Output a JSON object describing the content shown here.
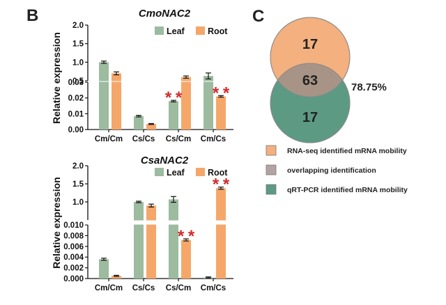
{
  "panel_b_label": "B",
  "panel_c_label": "C",
  "colors": {
    "leaf": "#9cbb9f",
    "root": "#f5a76a",
    "star": "#d42a2a",
    "venn_top": "#f4b07e",
    "venn_bottom": "#5c9a84",
    "venn_overlap": "#a89486",
    "legend_overlap": "#b3a3a6"
  },
  "chart_data": [
    {
      "type": "bar",
      "title": "CmoNAC2",
      "ylabel": "Relative expression",
      "categories": [
        "Cm/Cm",
        "Cs/Cs",
        "Cs/Cm",
        "Cm/Cs"
      ],
      "broken_axis": true,
      "upper_ylim": [
        0.5,
        2.0
      ],
      "upper_ticks": [
        "2.0",
        "1.5",
        "1.0",
        "0.5"
      ],
      "lower_ylim": [
        0,
        0.03
      ],
      "lower_ticks": [
        "0.03",
        "0.02",
        "0.01",
        "0.00"
      ],
      "legend": [
        "Leaf",
        "Root"
      ],
      "legend_position": "top-right",
      "series": [
        {
          "name": "Leaf",
          "values": [
            1.0,
            0.0085,
            0.018,
            0.63
          ],
          "errors": [
            0.03,
            0.0005,
            0.0005,
            0.08
          ]
        },
        {
          "name": "Root",
          "values": [
            0.7,
            0.0035,
            0.6,
            0.021
          ],
          "errors": [
            0.04,
            0.0003,
            0.03,
            0.0005
          ]
        }
      ],
      "significance": [
        {
          "category": "Cs/Cm",
          "series": "Leaf",
          "label": "*"
        },
        {
          "category": "Cs/Cm",
          "series": "Leaf",
          "label": "*"
        },
        {
          "category": "Cm/Cs",
          "series": "Root",
          "label": "*"
        },
        {
          "category": "Cm/Cs",
          "series": "Root",
          "label": "*"
        }
      ]
    },
    {
      "type": "bar",
      "title": "CsaNAC2",
      "ylabel": "Relative expression",
      "categories": [
        "Cm/Cm",
        "Cs/Cs",
        "Cs/Cm",
        "Cm/Cs"
      ],
      "broken_axis": true,
      "upper_ylim": [
        0.5,
        2.0
      ],
      "upper_ticks": [
        "2.0",
        "1.5",
        "1.0"
      ],
      "lower_ylim": [
        0,
        0.01
      ],
      "lower_ticks": [
        "0.010",
        "0.008",
        "0.006",
        "0.004",
        "0.002",
        "0.000"
      ],
      "legend": [
        "Leaf",
        "Root"
      ],
      "legend_position": "top-right",
      "series": [
        {
          "name": "Leaf",
          "values": [
            0.0036,
            1.0,
            1.07,
            0.0002
          ],
          "errors": [
            0.0002,
            0.02,
            0.08,
            0.0001
          ]
        },
        {
          "name": "Root",
          "values": [
            0.0005,
            0.9,
            0.0072,
            1.38
          ],
          "errors": [
            0.0001,
            0.04,
            0.0002,
            0.03
          ]
        }
      ],
      "significance": [
        {
          "category": "Cs/Cm",
          "series": "Root",
          "label": "*"
        },
        {
          "category": "Cs/Cm",
          "series": "Root",
          "label": "*"
        },
        {
          "category": "Cm/Cs",
          "series": "Root",
          "label": "*"
        },
        {
          "category": "Cm/Cs",
          "series": "Root",
          "label": "*"
        }
      ]
    }
  ],
  "venn": {
    "top_count": "17",
    "overlap_count": "63",
    "bottom_count": "17",
    "overlap_percent": "78.75%"
  },
  "venn_legend": [
    {
      "label": "RNA-seq identified mRNA mobility",
      "color": "#f4b07e"
    },
    {
      "label": "overlapping identification",
      "color": "#b3a3a6"
    },
    {
      "label": "qRT-PCR identified mRNA mobility",
      "color": "#5c9a84"
    }
  ]
}
